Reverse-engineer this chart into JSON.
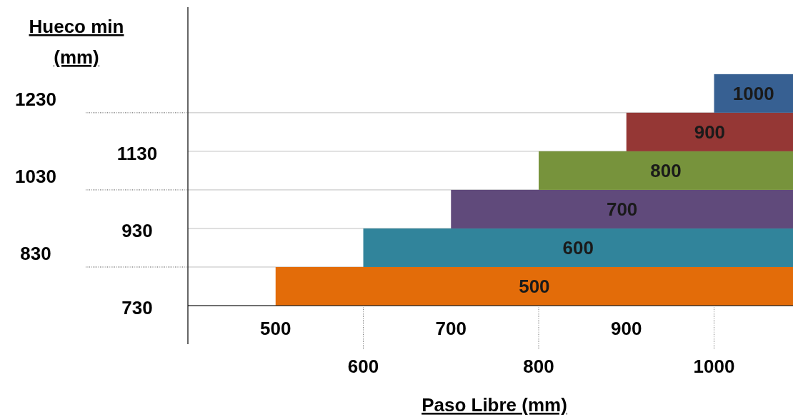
{
  "chart_data": {
    "type": "bar",
    "orientation": "horizontal",
    "xlabel": "Paso Libre (mm)",
    "ylabel": "Hueco min (mm)",
    "x": [
      780,
      880,
      980,
      1080,
      1180,
      1280
    ],
    "base": [
      500,
      600,
      700,
      800,
      900,
      1000
    ],
    "values": [
      590,
      490,
      390,
      290,
      190,
      90
    ],
    "colors": [
      "#e36c09",
      "#31849b",
      "#604a7b",
      "#77933c",
      "#953735",
      "#376092"
    ],
    "annotations": [
      "500",
      "600",
      "700",
      "800",
      "900",
      "1000"
    ],
    "xlim": [
      400,
      1090
    ],
    "xticks": [
      500,
      700,
      900
    ],
    "x2lim": [
      400,
      1090
    ],
    "x2ticks": [
      600,
      800,
      1000
    ],
    "ylim": [
      730,
      1500
    ],
    "yticks": [
      830,
      1030,
      1230
    ],
    "y2lim": [
      730,
      1500
    ],
    "y2ticks": [
      730,
      930,
      1130
    ],
    "grid": "y"
  }
}
